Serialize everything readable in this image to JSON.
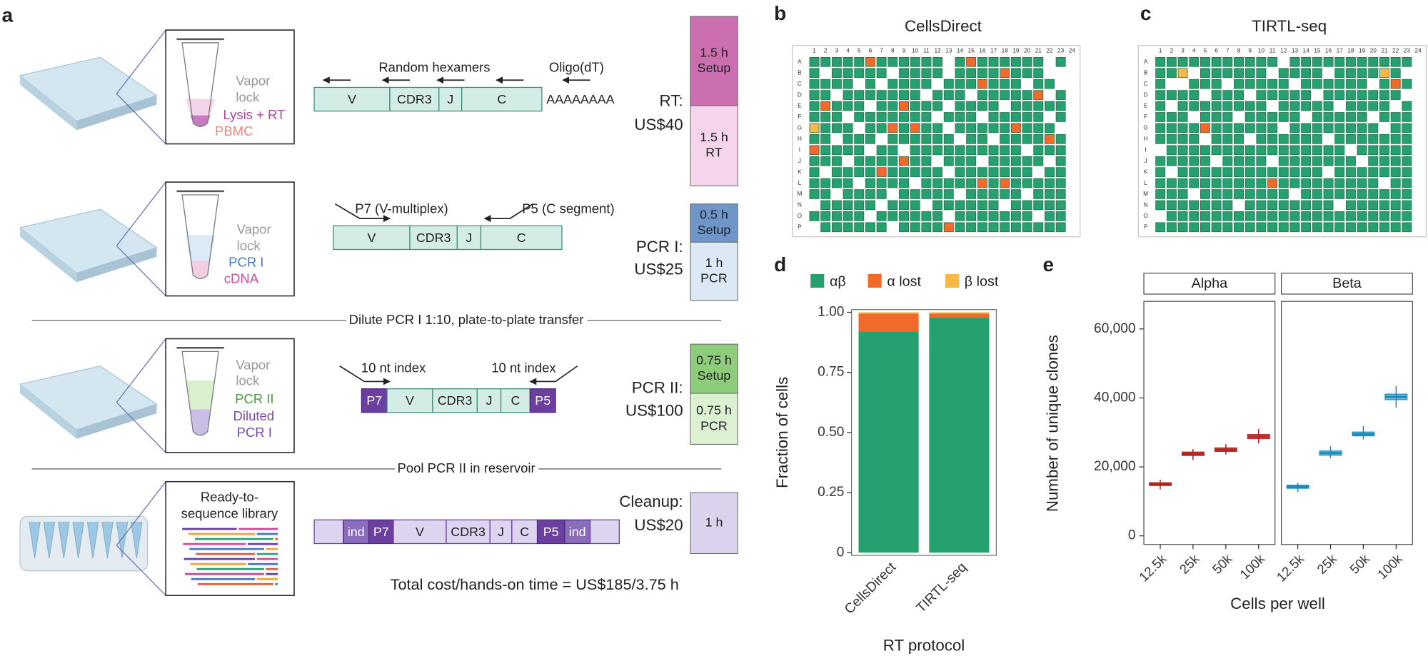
{
  "panel_a": {
    "label": "a",
    "steps": [
      {
        "tube_labels": [
          "Vapor",
          "lock",
          "Lysis + RT",
          "PBMC"
        ],
        "primers": [
          "Random hexamers",
          "Oligo(dT)"
        ],
        "segments": [
          "V",
          "CDR3",
          "J",
          "C"
        ],
        "tail": "AAAAAAAA",
        "cost": [
          "RT:",
          "US$40"
        ],
        "time": [
          [
            "1.5 h",
            "Setup"
          ],
          [
            "1.5 h",
            "RT"
          ]
        ]
      },
      {
        "tube_labels": [
          "Vapor",
          "lock",
          "PCR I",
          "cDNA"
        ],
        "primers": [
          "P7 (V-multiplex)",
          "P5 (C segment)"
        ],
        "segments": [
          "V",
          "CDR3",
          "J",
          "C"
        ],
        "cost": [
          "PCR I:",
          "US$25"
        ],
        "time": [
          [
            "0.5 h",
            "Setup"
          ],
          [
            "1 h",
            "PCR"
          ]
        ]
      },
      {
        "tube_labels": [
          "Vapor",
          "lock",
          "PCR II",
          "Diluted",
          "PCR I"
        ],
        "primers": [
          "10 nt index",
          "10 nt index"
        ],
        "segments": [
          "P7",
          "V",
          "CDR3",
          "J",
          "C",
          "P5"
        ],
        "cost": [
          "PCR II:",
          "US$100"
        ],
        "time": [
          [
            "0.75 h",
            "Setup"
          ],
          [
            "0.75 h",
            "PCR"
          ]
        ]
      },
      {
        "tube_labels": [
          "Ready-to-",
          "sequence library"
        ],
        "segments": [
          "ind",
          "P7",
          "V",
          "CDR3",
          "J",
          "C",
          "P5",
          "ind"
        ],
        "cost": [
          "Cleanup:",
          "US$20"
        ],
        "time": [
          [
            "1 h"
          ]
        ]
      }
    ],
    "dividers": [
      "Dilute PCR I 1:10, plate-to-plate transfer",
      "Pool PCR II in reservoir"
    ],
    "total": "Total cost/hands-on time = US$185/3.75 h"
  },
  "panel_b": {
    "label": "b",
    "title": "CellsDirect",
    "columns": [
      1,
      2,
      3,
      4,
      5,
      6,
      7,
      8,
      9,
      10,
      11,
      12,
      13,
      14,
      15,
      16,
      17,
      18,
      19,
      20,
      21,
      22,
      23,
      24
    ],
    "rows": [
      "A",
      "B",
      "C",
      "D",
      "E",
      "F",
      "G",
      "H",
      "I",
      "J",
      "K",
      "L",
      "M",
      "N",
      "O",
      "P"
    ],
    "status_colors": [
      "#ffffff",
      "#26a06e",
      "#f26a2a",
      "#f7b84a"
    ],
    "wells": [
      [
        1,
        1,
        1,
        1,
        1,
        2,
        1,
        1,
        1,
        1,
        1,
        1,
        0,
        1,
        2,
        1,
        1,
        1,
        1,
        1,
        1,
        0,
        1,
        0
      ],
      [
        1,
        0,
        1,
        1,
        1,
        1,
        1,
        0,
        1,
        1,
        1,
        1,
        0,
        1,
        1,
        1,
        1,
        2,
        1,
        1,
        1,
        0,
        0,
        0
      ],
      [
        1,
        1,
        1,
        1,
        0,
        1,
        0,
        1,
        1,
        1,
        1,
        0,
        1,
        1,
        1,
        2,
        1,
        1,
        1,
        0,
        1,
        1,
        0,
        0
      ],
      [
        1,
        1,
        0,
        1,
        1,
        1,
        1,
        1,
        1,
        1,
        0,
        1,
        1,
        1,
        0,
        1,
        1,
        1,
        1,
        1,
        2,
        0,
        1,
        0
      ],
      [
        1,
        2,
        1,
        1,
        1,
        0,
        1,
        1,
        2,
        1,
        1,
        1,
        0,
        1,
        1,
        1,
        1,
        0,
        1,
        1,
        1,
        1,
        1,
        0
      ],
      [
        1,
        1,
        1,
        0,
        1,
        1,
        1,
        1,
        1,
        1,
        1,
        0,
        1,
        1,
        1,
        0,
        1,
        1,
        1,
        1,
        1,
        0,
        1,
        0
      ],
      [
        3,
        1,
        1,
        1,
        0,
        1,
        1,
        2,
        1,
        2,
        1,
        1,
        0,
        1,
        1,
        1,
        1,
        1,
        2,
        1,
        1,
        1,
        0,
        0
      ],
      [
        1,
        1,
        0,
        1,
        1,
        1,
        0,
        1,
        1,
        1,
        1,
        1,
        1,
        0,
        1,
        1,
        0,
        1,
        1,
        1,
        1,
        2,
        1,
        0
      ],
      [
        2,
        1,
        1,
        1,
        1,
        0,
        1,
        1,
        0,
        1,
        1,
        1,
        1,
        1,
        1,
        1,
        1,
        1,
        1,
        0,
        1,
        1,
        1,
        0
      ],
      [
        1,
        1,
        1,
        0,
        1,
        1,
        1,
        1,
        2,
        1,
        1,
        0,
        1,
        1,
        1,
        0,
        1,
        1,
        1,
        1,
        1,
        0,
        1,
        0
      ],
      [
        1,
        0,
        1,
        1,
        1,
        1,
        2,
        1,
        1,
        1,
        1,
        1,
        0,
        1,
        1,
        1,
        1,
        1,
        1,
        1,
        0,
        1,
        1,
        0
      ],
      [
        1,
        1,
        1,
        1,
        0,
        1,
        1,
        1,
        1,
        0,
        1,
        1,
        1,
        1,
        1,
        2,
        1,
        2,
        1,
        1,
        1,
        1,
        1,
        0
      ],
      [
        1,
        1,
        0,
        1,
        1,
        1,
        1,
        0,
        1,
        1,
        1,
        1,
        1,
        0,
        1,
        1,
        1,
        1,
        1,
        0,
        1,
        1,
        1,
        0
      ],
      [
        0,
        1,
        1,
        1,
        1,
        1,
        0,
        1,
        1,
        1,
        0,
        1,
        1,
        1,
        1,
        1,
        1,
        0,
        1,
        1,
        1,
        1,
        1,
        0
      ],
      [
        1,
        1,
        1,
        1,
        1,
        0,
        1,
        1,
        1,
        1,
        1,
        1,
        0,
        1,
        1,
        1,
        1,
        1,
        1,
        1,
        0,
        1,
        1,
        0
      ],
      [
        0,
        1,
        1,
        1,
        1,
        1,
        1,
        0,
        1,
        1,
        1,
        1,
        2,
        1,
        1,
        1,
        1,
        1,
        1,
        1,
        1,
        1,
        1,
        0
      ]
    ]
  },
  "panel_c": {
    "label": "c",
    "title": "TIRTL-seq",
    "columns": [
      1,
      2,
      3,
      4,
      5,
      6,
      7,
      8,
      9,
      10,
      11,
      12,
      13,
      14,
      15,
      16,
      17,
      18,
      19,
      20,
      21,
      22,
      23,
      24
    ],
    "rows": [
      "A",
      "B",
      "C",
      "D",
      "E",
      "F",
      "G",
      "H",
      "I",
      "J",
      "K",
      "L",
      "M",
      "N",
      "O",
      "P"
    ],
    "status_colors": [
      "#ffffff",
      "#26a06e",
      "#f26a2a",
      "#f7b84a"
    ],
    "wells": [
      [
        1,
        1,
        1,
        1,
        1,
        1,
        1,
        1,
        1,
        1,
        1,
        0,
        1,
        1,
        1,
        1,
        1,
        1,
        1,
        1,
        1,
        1,
        1,
        0
      ],
      [
        1,
        1,
        3,
        0,
        1,
        1,
        1,
        1,
        1,
        1,
        0,
        1,
        1,
        1,
        1,
        0,
        1,
        1,
        1,
        1,
        3,
        1,
        0,
        0
      ],
      [
        1,
        0,
        0,
        1,
        1,
        1,
        0,
        1,
        1,
        1,
        1,
        1,
        0,
        1,
        1,
        1,
        1,
        1,
        1,
        0,
        1,
        2,
        1,
        0
      ],
      [
        1,
        1,
        1,
        1,
        0,
        1,
        1,
        1,
        0,
        1,
        1,
        1,
        1,
        1,
        0,
        1,
        1,
        1,
        1,
        1,
        1,
        1,
        0,
        0
      ],
      [
        1,
        0,
        1,
        1,
        1,
        1,
        1,
        1,
        1,
        1,
        0,
        1,
        1,
        1,
        1,
        1,
        0,
        1,
        1,
        1,
        1,
        0,
        1,
        0
      ],
      [
        1,
        1,
        1,
        0,
        1,
        1,
        1,
        0,
        1,
        1,
        1,
        1,
        1,
        0,
        1,
        1,
        1,
        1,
        1,
        0,
        1,
        1,
        1,
        0
      ],
      [
        1,
        1,
        1,
        1,
        2,
        1,
        1,
        1,
        1,
        1,
        1,
        0,
        1,
        1,
        1,
        1,
        1,
        1,
        1,
        1,
        0,
        1,
        1,
        0
      ],
      [
        1,
        1,
        1,
        1,
        0,
        1,
        1,
        1,
        0,
        1,
        1,
        1,
        1,
        1,
        1,
        0,
        1,
        1,
        1,
        1,
        1,
        1,
        1,
        0
      ],
      [
        0,
        1,
        1,
        1,
        1,
        1,
        1,
        1,
        1,
        1,
        1,
        1,
        1,
        1,
        1,
        1,
        1,
        0,
        1,
        1,
        1,
        1,
        1,
        0
      ],
      [
        1,
        1,
        1,
        1,
        1,
        0,
        1,
        1,
        1,
        1,
        0,
        1,
        1,
        1,
        1,
        1,
        1,
        1,
        0,
        1,
        1,
        1,
        1,
        0
      ],
      [
        1,
        0,
        1,
        1,
        1,
        1,
        1,
        1,
        1,
        1,
        1,
        1,
        1,
        1,
        1,
        0,
        1,
        1,
        1,
        1,
        1,
        1,
        1,
        0
      ],
      [
        1,
        1,
        1,
        1,
        1,
        1,
        1,
        1,
        1,
        1,
        2,
        1,
        1,
        1,
        1,
        1,
        1,
        1,
        1,
        1,
        0,
        1,
        1,
        0
      ],
      [
        1,
        1,
        1,
        0,
        1,
        1,
        1,
        1,
        1,
        1,
        1,
        1,
        0,
        1,
        1,
        1,
        1,
        1,
        1,
        1,
        1,
        1,
        1,
        0
      ],
      [
        1,
        1,
        1,
        1,
        1,
        1,
        1,
        0,
        1,
        1,
        1,
        1,
        1,
        1,
        1,
        1,
        0,
        1,
        1,
        1,
        1,
        1,
        1,
        0
      ],
      [
        0,
        1,
        1,
        1,
        1,
        1,
        1,
        1,
        1,
        1,
        1,
        1,
        1,
        1,
        1,
        1,
        1,
        1,
        1,
        1,
        1,
        1,
        1,
        0
      ],
      [
        1,
        1,
        1,
        1,
        1,
        1,
        1,
        1,
        1,
        1,
        1,
        1,
        1,
        1,
        1,
        1,
        1,
        1,
        1,
        1,
        1,
        1,
        1,
        0
      ]
    ]
  },
  "chart_data": [
    {
      "type": "bar",
      "stacked": true,
      "label": "d",
      "categories": [
        "CellsDirect",
        "TIRTL-seq"
      ],
      "series": [
        {
          "name": "αβ",
          "color": "#26a06e",
          "values": [
            0.92,
            0.98
          ]
        },
        {
          "name": "α lost",
          "color": "#f26a2a",
          "values": [
            0.075,
            0.015
          ]
        },
        {
          "name": "β lost",
          "color": "#f7b84a",
          "values": [
            0.005,
            0.005
          ]
        }
      ],
      "ylim": [
        0,
        1
      ],
      "yticks": [
        0,
        0.25,
        {
          "value": 0.5,
          "label": "0.50"
        },
        0.75,
        {
          "value": 1,
          "label": "1.00"
        }
      ],
      "xlabel": "RT protocol",
      "ylabel": "Fraction of cells",
      "legend": "top"
    },
    {
      "type": "box",
      "label": "e",
      "categories": [
        "12.5k",
        "25k",
        "50k",
        "100k"
      ],
      "series": [
        {
          "name": "Alpha",
          "color": "#b52222",
          "min": [
            13500,
            22000,
            23600,
            26800
          ],
          "q1": [
            14600,
            23300,
            24500,
            28200
          ],
          "median": [
            15000,
            23800,
            25000,
            28800
          ],
          "q3": [
            15400,
            24300,
            25500,
            29400
          ],
          "max": [
            16300,
            25200,
            26600,
            31000
          ]
        },
        {
          "name": "Beta",
          "color": "#1a8bbf",
          "min": [
            12700,
            22500,
            28000,
            37200
          ],
          "q1": [
            13800,
            23400,
            29000,
            39500
          ],
          "median": [
            14200,
            24000,
            29500,
            40300
          ],
          "q3": [
            14700,
            24600,
            30100,
            41100
          ],
          "max": [
            15400,
            26000,
            31800,
            43500
          ]
        }
      ],
      "ylim": [
        -2500,
        68000
      ],
      "yticks": [
        0,
        {
          "value": 20000,
          "label": "20,000"
        },
        {
          "value": 40000,
          "label": "40,000"
        },
        {
          "value": 60000,
          "label": "60,000"
        }
      ],
      "xlabel": "Cells per well",
      "ylabel": "Number of unique clones"
    }
  ]
}
